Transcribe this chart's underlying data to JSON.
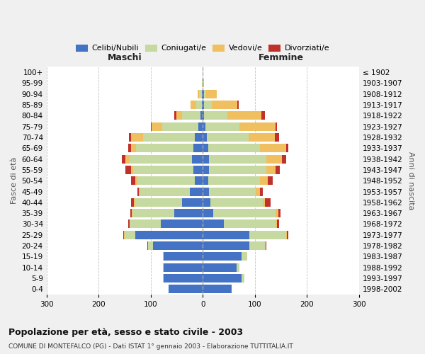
{
  "age_groups": [
    "0-4",
    "5-9",
    "10-14",
    "15-19",
    "20-24",
    "25-29",
    "30-34",
    "35-39",
    "40-44",
    "45-49",
    "50-54",
    "55-59",
    "60-64",
    "65-69",
    "70-74",
    "75-79",
    "80-84",
    "85-89",
    "90-94",
    "95-99",
    "100+"
  ],
  "birth_years": [
    "1998-2002",
    "1993-1997",
    "1988-1992",
    "1983-1987",
    "1978-1982",
    "1973-1977",
    "1968-1972",
    "1963-1967",
    "1958-1962",
    "1953-1957",
    "1948-1952",
    "1943-1947",
    "1938-1942",
    "1933-1937",
    "1928-1932",
    "1923-1927",
    "1918-1922",
    "1913-1917",
    "1908-1912",
    "1903-1907",
    "≤ 1902"
  ],
  "maschi_celibi": [
    65,
    75,
    75,
    75,
    95,
    130,
    80,
    55,
    40,
    25,
    15,
    18,
    20,
    18,
    15,
    8,
    5,
    2,
    2,
    0,
    0
  ],
  "maschi_coniugati": [
    0,
    2,
    2,
    2,
    10,
    20,
    60,
    80,
    90,
    95,
    110,
    115,
    120,
    110,
    100,
    70,
    35,
    10,
    5,
    1,
    0
  ],
  "maschi_vedovi": [
    0,
    0,
    0,
    0,
    0,
    1,
    1,
    1,
    2,
    3,
    5,
    5,
    8,
    10,
    22,
    20,
    10,
    12,
    3,
    0,
    0
  ],
  "maschi_divorziati": [
    0,
    0,
    0,
    0,
    1,
    1,
    2,
    3,
    5,
    3,
    8,
    10,
    8,
    5,
    5,
    2,
    5,
    0,
    0,
    0,
    0
  ],
  "femmine_celibi": [
    55,
    75,
    65,
    75,
    90,
    90,
    40,
    20,
    15,
    12,
    10,
    12,
    12,
    10,
    8,
    5,
    2,
    2,
    2,
    0,
    0
  ],
  "femmine_coniugati": [
    0,
    5,
    5,
    10,
    30,
    70,
    100,
    120,
    100,
    90,
    100,
    110,
    110,
    100,
    80,
    65,
    45,
    15,
    5,
    0,
    0
  ],
  "femmine_vedovi": [
    0,
    0,
    0,
    0,
    1,
    2,
    3,
    5,
    5,
    8,
    15,
    18,
    30,
    50,
    50,
    70,
    65,
    50,
    20,
    3,
    0
  ],
  "femmine_divorziati": [
    0,
    0,
    0,
    0,
    1,
    2,
    3,
    5,
    10,
    5,
    10,
    8,
    8,
    5,
    8,
    2,
    8,
    2,
    0,
    0,
    0
  ],
  "color_celibi": "#4472c4",
  "color_coniugati": "#c5d9a0",
  "color_vedovi": "#f0c060",
  "color_divorziati": "#c0312b",
  "title": "Popolazione per età, sesso e stato civile - 2003",
  "subtitle": "COMUNE DI MONTEFALCO (PG) - Dati ISTAT 1° gennaio 2003 - Elaborazione TUTTITALIA.IT",
  "ylabel_left": "Fasce di età",
  "ylabel_right": "Anni di nascita",
  "xlabel_left": "Maschi",
  "xlabel_right": "Femmine",
  "xlim": 300,
  "bg_color": "#f0f0f0",
  "plot_bg": "#ffffff"
}
